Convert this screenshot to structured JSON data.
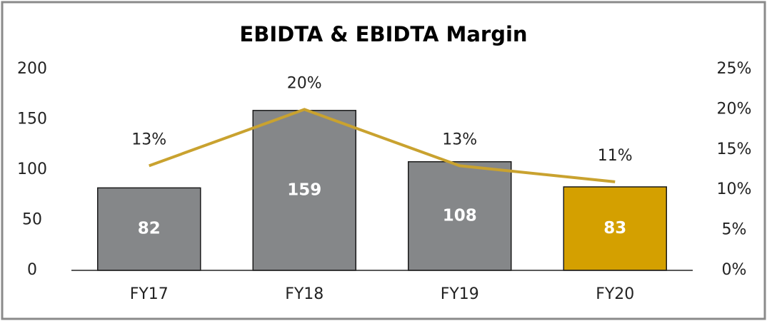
{
  "chart_data": {
    "type": "bar",
    "title": "EBIDTA & EBIDTA Margin",
    "categories": [
      "FY17",
      "FY18",
      "FY19",
      "FY20"
    ],
    "series": [
      {
        "type": "bar",
        "colors": [
          "#858789",
          "#858789",
          "#858789",
          "#d4a000"
        ],
        "values": [
          82,
          159,
          108,
          83
        ]
      },
      {
        "type": "line",
        "axis": "y2",
        "color": "#c9a22f",
        "values": [
          13,
          20,
          13,
          11
        ],
        "value_labels": [
          "13%",
          "20%",
          "13%",
          "11%"
        ]
      }
    ],
    "ylim": [
      0,
      200
    ],
    "yticks": [
      0,
      50,
      100,
      150,
      200
    ],
    "y2lim": [
      0,
      25
    ],
    "y2ticks": [
      {
        "value": 0,
        "label": "0%"
      },
      {
        "value": 5,
        "label": "5%"
      },
      {
        "value": 10,
        "label": "10%"
      },
      {
        "value": 15,
        "label": "15%"
      },
      {
        "value": 20,
        "label": "20%"
      },
      {
        "value": 25,
        "label": "25%"
      }
    ],
    "grid": false
  }
}
